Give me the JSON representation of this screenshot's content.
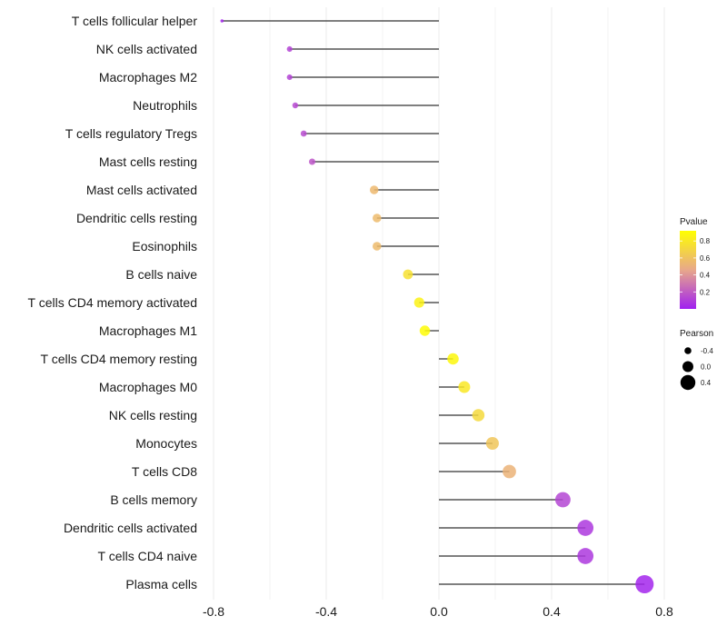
{
  "chart_data": {
    "type": "lollipop",
    "categories": [
      "T cells follicular helper",
      "NK cells activated",
      "Macrophages M2",
      "Neutrophils",
      "T cells regulatory  Tregs",
      "Mast cells resting",
      "Mast cells activated",
      "Dendritic cells resting",
      "Eosinophils",
      "B cells naive",
      "T cells CD4 memory activated",
      "Macrophages M1",
      "T cells CD4 memory resting",
      "Macrophages M0",
      "NK cells resting",
      "Monocytes",
      "T cells CD8",
      "B cells memory",
      "Dendritic cells activated",
      "T cells CD4 naive",
      "Plasma cells"
    ],
    "values": [
      -0.77,
      -0.53,
      -0.53,
      -0.51,
      -0.48,
      -0.45,
      -0.23,
      -0.22,
      -0.22,
      -0.11,
      -0.07,
      -0.05,
      0.05,
      0.09,
      0.14,
      0.19,
      0.25,
      0.44,
      0.52,
      0.52,
      0.73
    ],
    "pvalues": [
      0.02,
      0.12,
      0.12,
      0.14,
      0.15,
      0.18,
      0.55,
      0.56,
      0.56,
      0.76,
      0.85,
      0.9,
      0.88,
      0.8,
      0.72,
      0.62,
      0.52,
      0.13,
      0.08,
      0.08,
      0.02
    ],
    "xlim": [
      -0.8,
      0.8
    ],
    "xticks": [
      -0.8,
      -0.4,
      0.0,
      0.4,
      0.8
    ],
    "xtick_labels": [
      "-0.8",
      "-0.4",
      "0.0",
      "0.4",
      "0.8"
    ],
    "legend_pvalue": {
      "title": "Pvalue",
      "ticks": [
        0.8,
        0.6,
        0.4,
        0.2
      ],
      "tick_labels": [
        "0.8",
        "0.6",
        "0.4",
        "0.2"
      ],
      "range": [
        0.0,
        0.92
      ],
      "color_low": "#a020f0",
      "color_mid": "#e8a88a",
      "color_high": "#ffff00"
    },
    "legend_size": {
      "title": "Pearson",
      "values": [
        -0.4,
        0.0,
        0.4
      ],
      "labels": [
        "-0.4",
        "0.0",
        "0.4"
      ]
    },
    "stem_color": "#333333",
    "grid_color": "#ebebeb"
  }
}
